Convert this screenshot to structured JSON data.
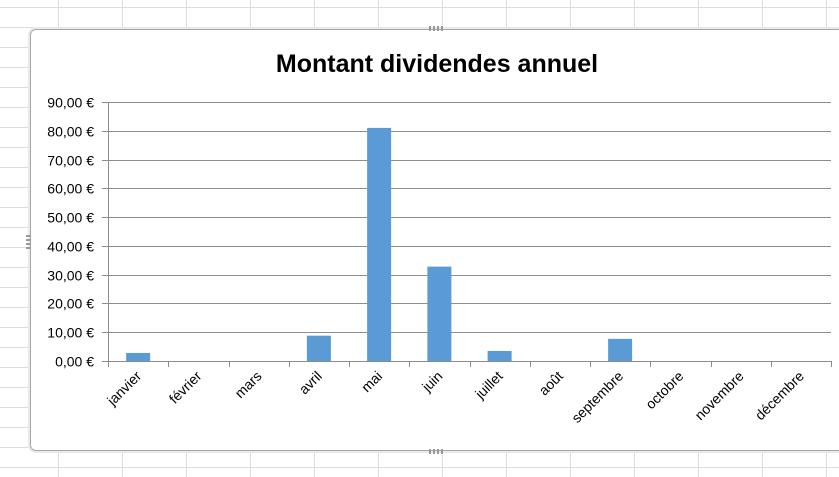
{
  "chart_data": {
    "type": "bar",
    "title": "Montant dividendes annuel",
    "categories": [
      "janvier",
      "février",
      "mars",
      "avril",
      "mai",
      "juin",
      "juillet",
      "août",
      "septembre",
      "octobre",
      "novembre",
      "décembre"
    ],
    "values": [
      2.8,
      0,
      0,
      8.8,
      81,
      32.8,
      3.5,
      0,
      7.7,
      0,
      0,
      0
    ],
    "ylim": [
      0,
      90
    ],
    "yticks": [
      0,
      10,
      20,
      30,
      40,
      50,
      60,
      70,
      80,
      90
    ],
    "ytick_labels": [
      "0,00 €",
      "10,00 €",
      "20,00 €",
      "30,00 €",
      "40,00 €",
      "50,00 €",
      "60,00 €",
      "70,00 €",
      "80,00 €",
      "90,00 €"
    ],
    "xlabel": "",
    "ylabel": "",
    "grid": true,
    "legend": "none",
    "bar_color": "#5b9bd5"
  }
}
